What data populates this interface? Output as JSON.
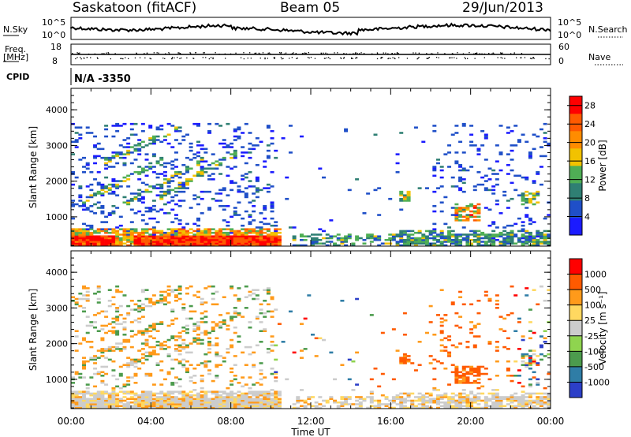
{
  "header": {
    "title": "Saskatoon (fitACF)",
    "beam": "Beam 05",
    "date": "29/Jun/2013"
  },
  "status": {
    "nsky_label": "N.Sky",
    "nsearch_label": "N.Search",
    "nsky_ticks": [
      "10^5",
      "10^0"
    ],
    "nsearch_ticks": [
      "10^5",
      "10^0"
    ],
    "freq_label_1": "Freq.",
    "freq_label_2": "[MHz]",
    "freq_ticks": [
      "18",
      "8"
    ],
    "nave_label": "Nave",
    "nave_ticks": [
      "60",
      "0"
    ],
    "cpid_label": "CPID",
    "cpid_value": "N/A -3350"
  },
  "chart_data": [
    {
      "type": "heatmap",
      "title": "",
      "xlabel": "",
      "ylabel": "Slant Range [km]",
      "x_ticks": [
        "00:00",
        "04:00",
        "08:00",
        "12:00",
        "16:00",
        "20:00",
        "00:00"
      ],
      "y_ticks": [
        1000,
        2000,
        3000,
        4000
      ],
      "ylim": [
        180,
        4600
      ],
      "colorbar": {
        "label": "Power [dB]",
        "ticks": [
          4,
          8,
          12,
          16,
          20,
          24,
          28
        ],
        "range": [
          0,
          30
        ],
        "colors": [
          "#1b1bff",
          "#1f4fc8",
          "#2f7f73",
          "#4fae55",
          "#f2c200",
          "#ff8c00",
          "#ff5a00",
          "#ff0000"
        ]
      }
    },
    {
      "type": "heatmap",
      "title": "",
      "xlabel": "Time UT",
      "ylabel": "Slant Range [km]",
      "x_ticks": [
        "00:00",
        "04:00",
        "08:00",
        "12:00",
        "16:00",
        "20:00",
        "00:00"
      ],
      "y_ticks": [
        1000,
        2000,
        3000,
        4000
      ],
      "ylim": [
        180,
        4600
      ],
      "colorbar": {
        "label": "Velocity [m s⁻¹]",
        "ticks": [
          "1000",
          "500",
          "100",
          "25",
          "-25",
          "-100",
          "-500",
          "-1000"
        ],
        "colors": [
          "#2c3fc8",
          "#2f7da6",
          "#4c9b4d",
          "#8fd44f",
          "#cccccc",
          "#ffd860",
          "#ff9a1a",
          "#ff5a00",
          "#ff0000"
        ]
      }
    }
  ]
}
